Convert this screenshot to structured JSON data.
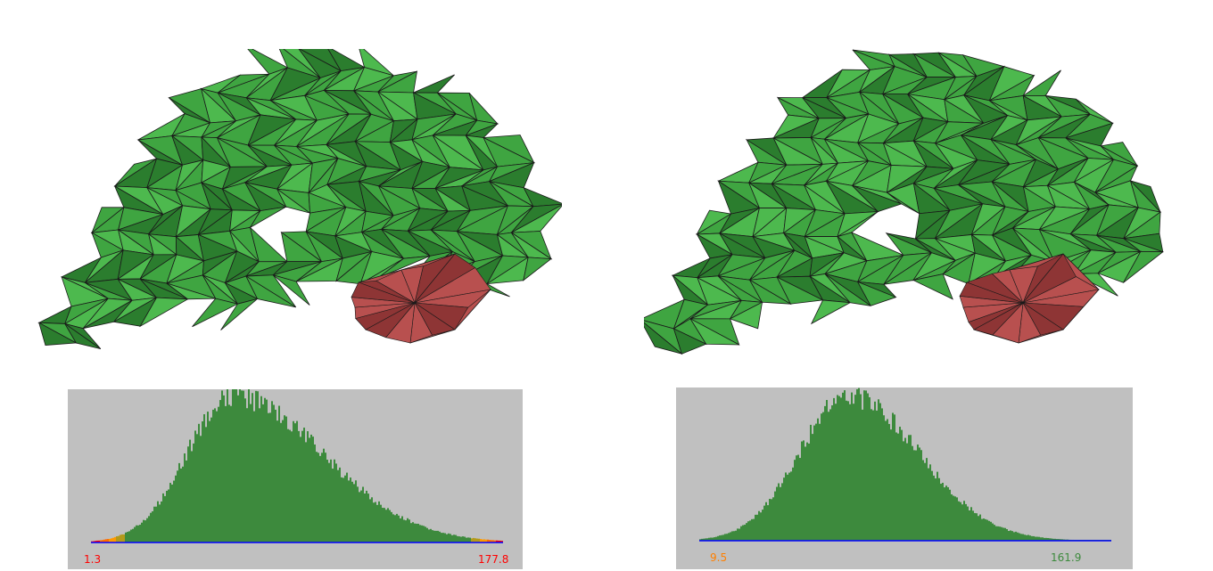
{
  "panels": [
    {
      "id": "left",
      "mesh": {
        "surface_color": "#3fa541",
        "shadow_color": "#2b7d2e",
        "highlight_color": "#4db94e",
        "defect_color": "#b8504f",
        "defect_shadow": "#8e3535",
        "edge_color": "#1a1a1a"
      },
      "histogram": {
        "min_label": "1.3",
        "max_label": "177.8",
        "min_label_color": "#ff0000",
        "max_label_color": "#ff0000",
        "bar_color": "#3d8a3d",
        "axis_color": "#0000ff",
        "low_tail_colors": [
          "#ff0000",
          "#ff6a00",
          "#ff9900",
          "#b39a1a"
        ],
        "high_tail_colors": [
          "#b39a1a",
          "#ff9900",
          "#ff6a00",
          "#ff0000"
        ],
        "peak_fraction": 0.34
      }
    },
    {
      "id": "right",
      "mesh": {
        "surface_color": "#3fa541",
        "shadow_color": "#2b7d2e",
        "highlight_color": "#4db94e",
        "defect_color": "#b8504f",
        "defect_shadow": "#8e3535",
        "edge_color": "#1a1a1a"
      },
      "histogram": {
        "min_label": "9.5",
        "max_label": "161.9",
        "min_label_color": "#ff7f00",
        "max_label_color": "#3d8a3d",
        "bar_color": "#3d8a3d",
        "axis_color": "#0000ff",
        "low_tail_colors": [],
        "high_tail_colors": [],
        "peak_fraction": 0.36
      }
    }
  ]
}
